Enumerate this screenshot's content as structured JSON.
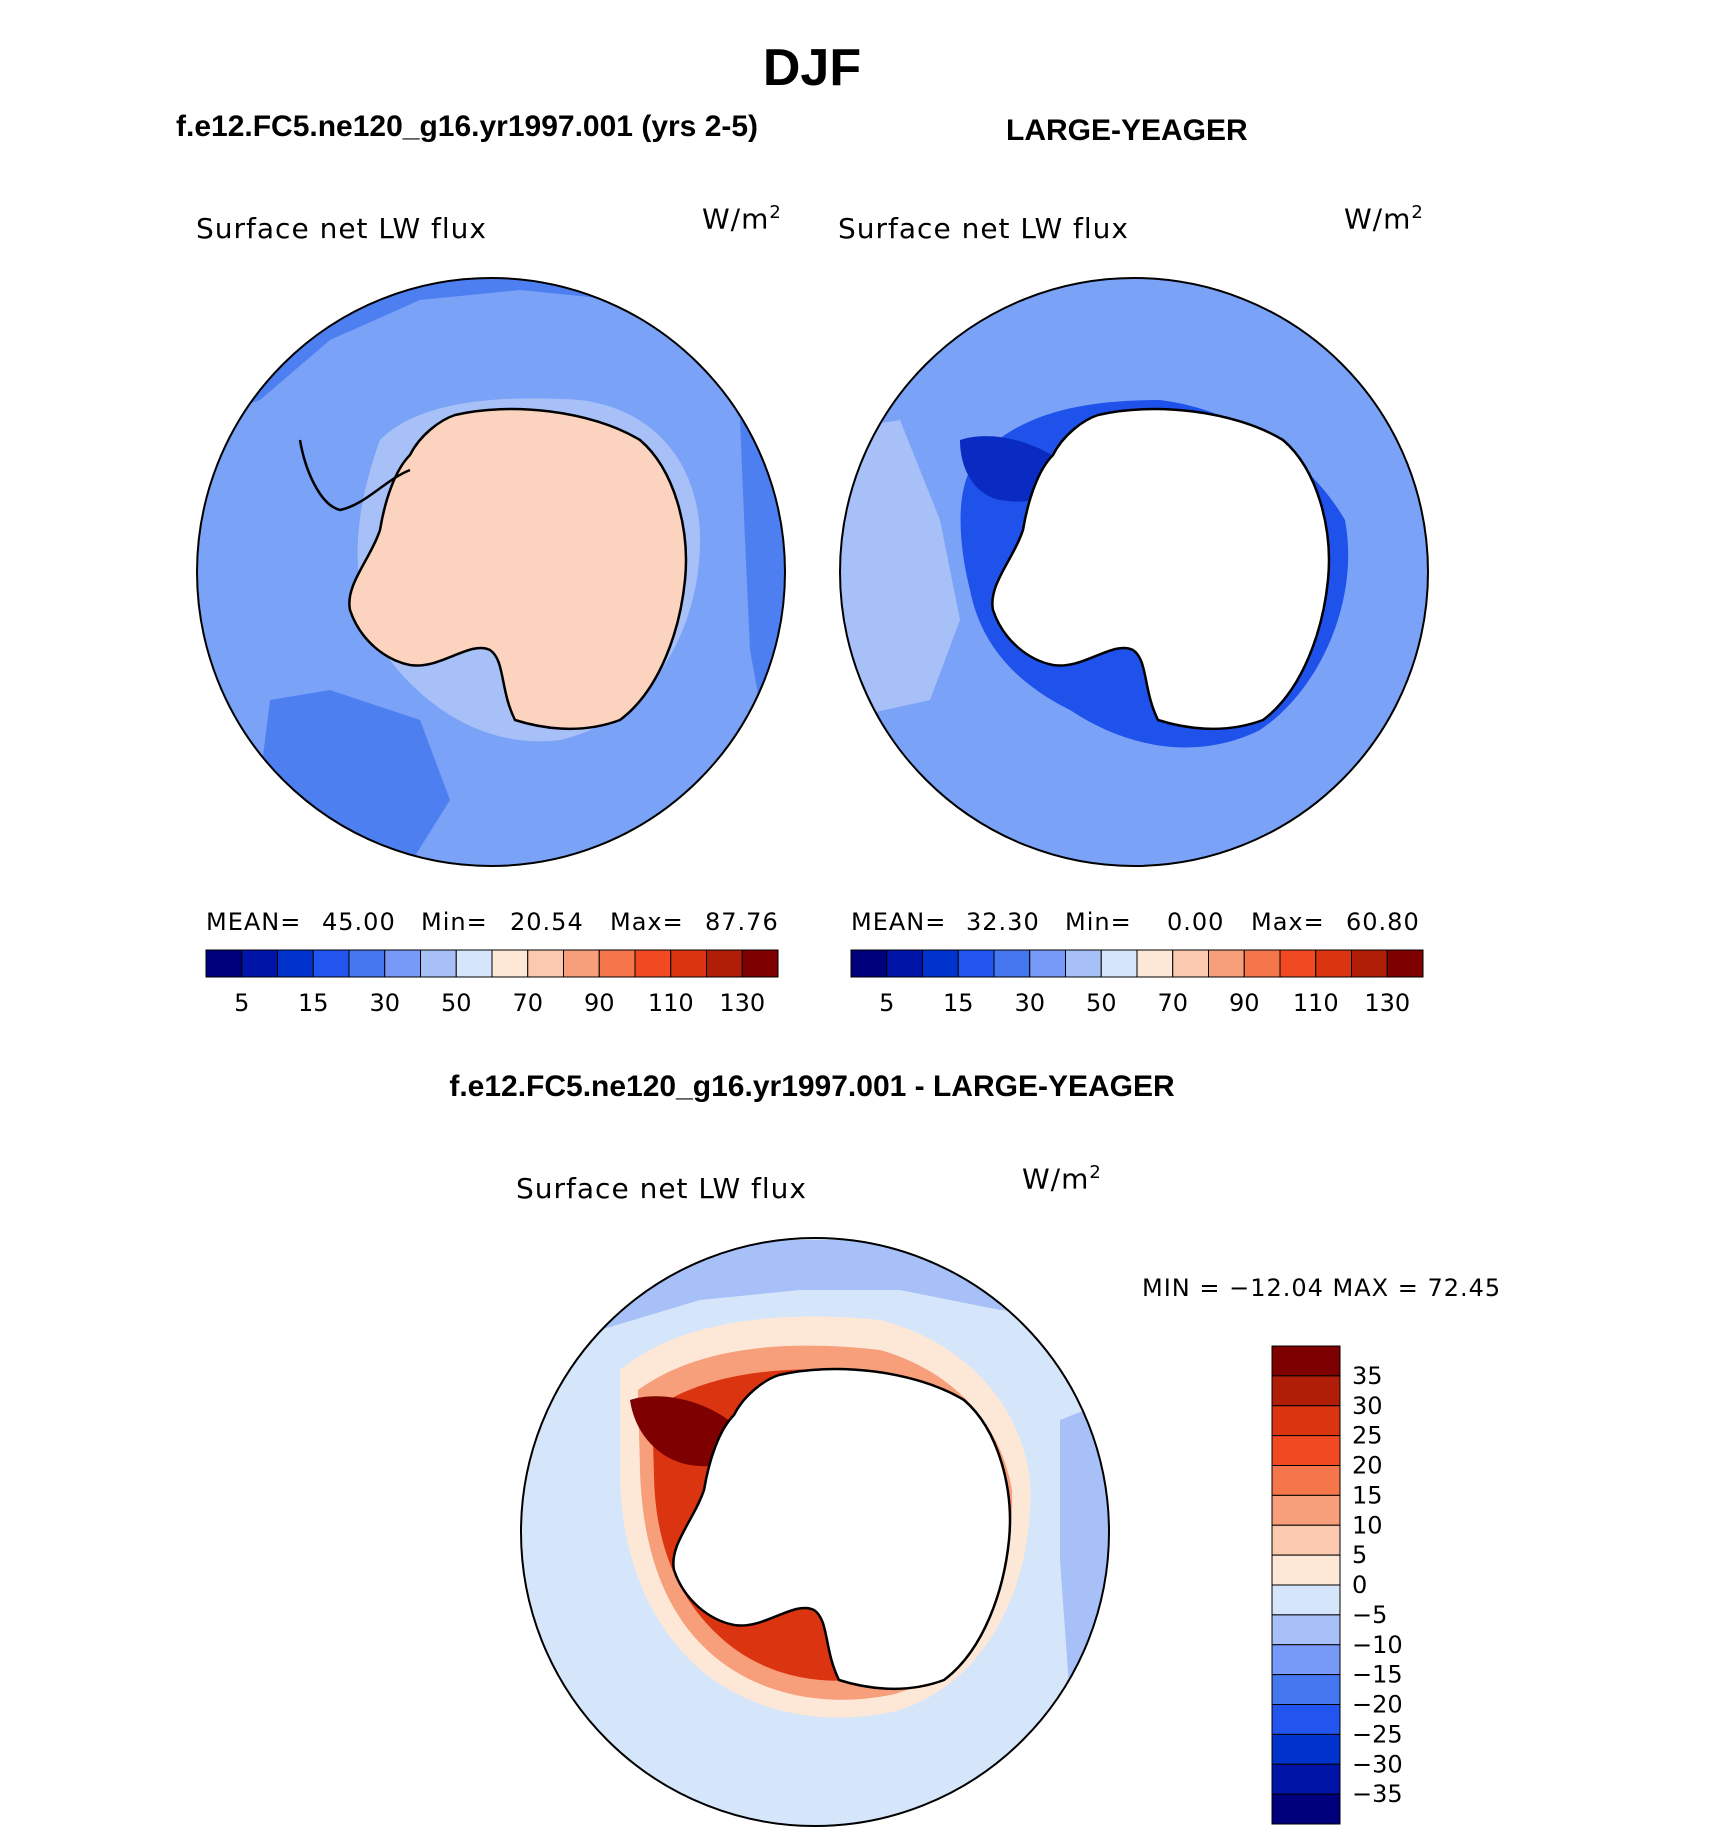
{
  "figure": {
    "season": "DJF",
    "model_title": "f.e12.FC5.ne120_g16.yr1997.001 (yrs 2-5)",
    "obs_title": "LARGE-YEAGER",
    "diff_title": "f.e12.FC5.ne120_g16.yr1997.001 - LARGE-YEAGER"
  },
  "panels": {
    "model": {
      "variable": "Surface net LW flux",
      "units_prefix": "W/m",
      "units_exp": "2",
      "mean_label": "MEAN=",
      "mean_value": "45.00",
      "min_label": "Min=",
      "min_value": "20.54",
      "max_label": "Max=",
      "max_value": "87.76"
    },
    "obs": {
      "variable": "Surface net LW flux",
      "units_prefix": "W/m",
      "units_exp": "2",
      "mean_label": "MEAN=",
      "mean_value": "32.30",
      "min_label": "Min=",
      "min_value": "0.00",
      "max_label": "Max=",
      "max_value": "60.80"
    },
    "diff": {
      "variable": "Surface net LW flux",
      "units_prefix": "W/m",
      "units_exp": "2",
      "minmax_text": "MIN = −12.04 MAX =   72.45"
    }
  },
  "colorbar_abs": {
    "colors": [
      "#00007d",
      "#0014a8",
      "#0033cc",
      "#2255ee",
      "#4477f0",
      "#7799f7",
      "#a8c0f8",
      "#d6e6fa",
      "#fde8d8",
      "#fbc8b0",
      "#f79e7a",
      "#f6764c",
      "#f14a22",
      "#da3410",
      "#b01e08",
      "#7e0000"
    ],
    "tick_labels": [
      "5",
      "15",
      "30",
      "50",
      "70",
      "90",
      "110",
      "130"
    ]
  },
  "colorbar_diff": {
    "colors_top_to_bottom": [
      "#7e0000",
      "#b01e08",
      "#da3410",
      "#f14a22",
      "#f6764c",
      "#f79e7a",
      "#fbc8b0",
      "#fde8d8",
      "#d6e6fa",
      "#a8c0f8",
      "#7799f7",
      "#4477f0",
      "#2255ee",
      "#0033cc",
      "#0014a8",
      "#00007d"
    ],
    "tick_labels": [
      "35",
      "30",
      "25",
      "20",
      "15",
      "10",
      "5",
      "0",
      "−5",
      "−10",
      "−15",
      "−20",
      "−25",
      "−30",
      "−35"
    ]
  },
  "palette": {
    "ocean_model": "#7aa2f7",
    "ocean_model_dark": "#4e7ff0",
    "land_model": "#fbd3bf",
    "ocean_obs": "#7aa2f7",
    "ocean_obs_dark": "#1f52ea",
    "ocean_obs_deep": "#0a2bc2",
    "diff_light_blue": "#d6e6fa",
    "diff_blue": "#a8c0f8",
    "diff_red": "#da3410",
    "diff_orange": "#f79e7a",
    "diff_peach": "#fde8d8"
  }
}
